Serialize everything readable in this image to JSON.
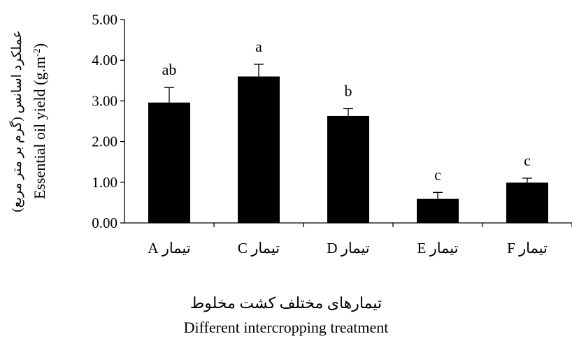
{
  "chart_data": {
    "type": "bar",
    "categories": [
      "تیمار A",
      "تیمار C",
      "تیمار D",
      "تیمار E",
      "تیمار F"
    ],
    "values": [
      2.96,
      3.6,
      2.63,
      0.59,
      0.99
    ],
    "errors": [
      0.37,
      0.3,
      0.18,
      0.16,
      0.11
    ],
    "significance_letters": [
      "ab",
      "a",
      "b",
      "c",
      "c"
    ],
    "ylabel_fa": "عملکرد اسانس (گرم بر متر مربع)",
    "ylabel_en": "Essential oil yield (g.m",
    "ylabel_en_sup": "-2",
    "ylabel_en_close": ")",
    "xlabel_fa": "تیمارهای مختلف کشت مخلوط",
    "xlabel_en": "Different intercropping treatment",
    "ylim": [
      0,
      5
    ],
    "yticks": [
      "0.00",
      "1.00",
      "2.00",
      "3.00",
      "4.00",
      "5.00"
    ],
    "grid": false,
    "legend": "none",
    "bar_color": "#000000"
  }
}
